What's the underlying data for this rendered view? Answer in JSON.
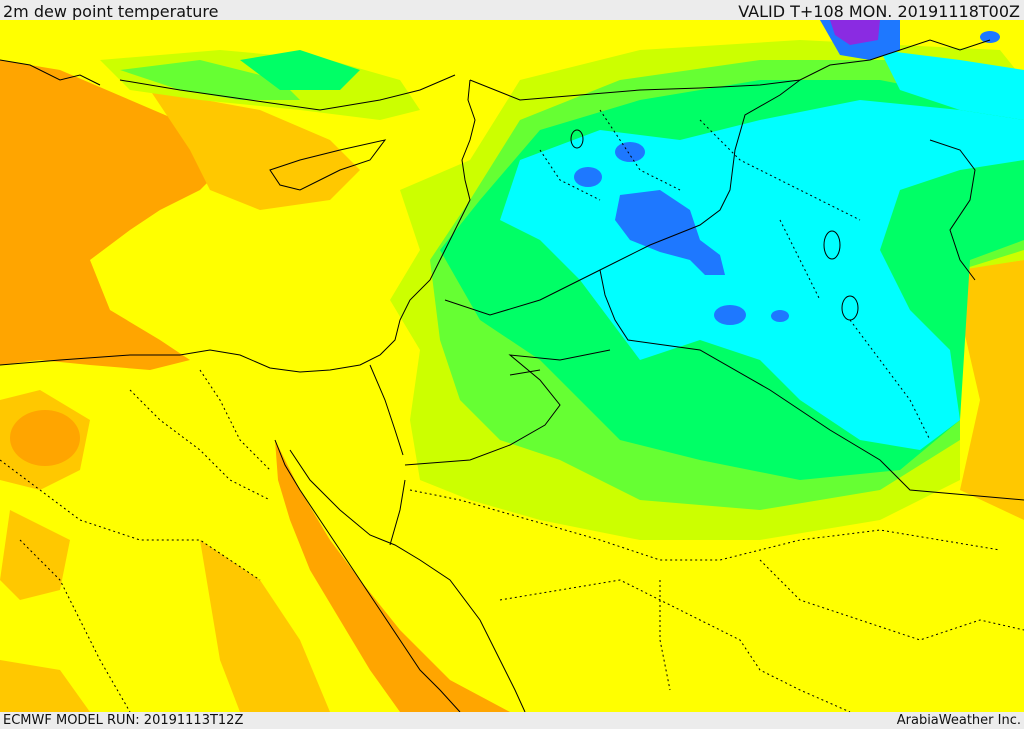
{
  "header": {
    "title": "2m dew point temperature",
    "valid_time": "VALID T+108 MON. 20191118T00Z"
  },
  "footer": {
    "model_run": "ECMWF MODEL RUN: 20191113T12Z",
    "credit": "ArabiaWeather Inc."
  },
  "colors": {
    "background_yellow": "#ffff00",
    "orange": "#ffa500",
    "light_orange": "#ffc800",
    "yellow_green": "#ccff00",
    "light_green": "#66ff33",
    "green": "#00ff66",
    "cyan": "#00ffff",
    "blue": "#1e78ff",
    "purple": "#8a2be2",
    "border_line": "#000000",
    "bar_background": "#ececec"
  }
}
